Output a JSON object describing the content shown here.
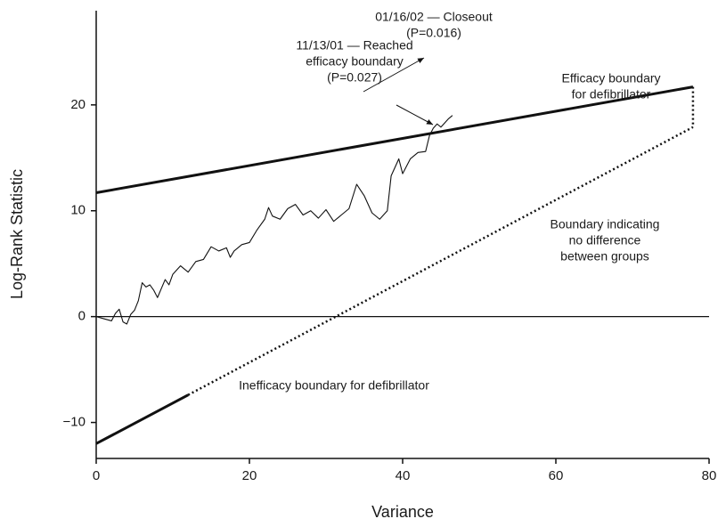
{
  "chart_data": {
    "type": "line",
    "x_label": "Variance",
    "y_label": "Log-Rank Statistic",
    "xlim": [
      0,
      80
    ],
    "ylim": [
      -13.4,
      28.9
    ],
    "xticks": [
      0,
      20,
      40,
      60,
      80
    ],
    "yticks": [
      {
        "value": -10,
        "label": "−10"
      },
      0,
      10,
      20
    ],
    "color": "#111111",
    "series": [
      {
        "x": [
          0,
          1,
          2,
          2.5,
          3,
          3.5,
          4,
          4.5,
          5,
          5.5,
          6,
          6.5,
          7,
          7.5,
          8,
          9,
          9.5,
          10,
          11,
          12,
          13,
          14,
          15,
          16,
          17,
          17.5,
          18,
          19,
          20,
          21,
          22,
          22.5,
          23,
          24,
          25,
          26,
          27,
          28,
          29,
          30,
          31,
          32,
          33,
          34,
          35,
          36,
          37,
          38,
          38.5,
          39,
          39.5,
          40,
          41,
          42,
          43,
          43.5,
          44,
          44.5,
          45,
          46,
          46.5
        ],
        "values": [
          0,
          -0.2,
          -0.4,
          0.3,
          0.7,
          -0.5,
          -0.7,
          0.2,
          0.6,
          1.5,
          3.2,
          2.8,
          3.0,
          2.5,
          1.8,
          3.5,
          3.0,
          4.0,
          4.8,
          4.2,
          5.2,
          5.4,
          6.6,
          6.2,
          6.5,
          5.6,
          6.2,
          6.8,
          7.0,
          8.2,
          9.2,
          10.3,
          9.5,
          9.2,
          10.2,
          10.6,
          9.6,
          10.0,
          9.3,
          10.1,
          9.0,
          9.6,
          10.2,
          12.5,
          11.4,
          9.8,
          9.2,
          10.0,
          13.3,
          14.1,
          14.9,
          13.5,
          14.9,
          15.5,
          15.6,
          17.1,
          17.8,
          18.2,
          17.9,
          18.7,
          19.0
        ],
        "style": "thin"
      },
      {
        "x": [
          0,
          77.9
        ],
        "values": [
          11.7,
          21.7
        ],
        "style": "thick"
      },
      {
        "x": [
          0,
          12
        ],
        "values": [
          -12,
          -7.4
        ],
        "style": "thick"
      },
      {
        "x": [
          12,
          77.9
        ],
        "values": [
          -7.4,
          17.9
        ],
        "style": "dotted"
      },
      {
        "x": [
          77.9,
          77.9
        ],
        "values": [
          21.7,
          17.9
        ],
        "style": "dotted"
      },
      {
        "x": [
          0,
          80
        ],
        "values": [
          0,
          0
        ],
        "style": "axis"
      }
    ],
    "annotations": [
      {
        "lines": [
          "01/16/02 — Closeout",
          "(P=0.016)"
        ]
      },
      {
        "lines": [
          "11/13/01 — Reached",
          "efficacy boundary",
          "(P=0.027)"
        ]
      },
      {
        "lines": [
          "Efficacy boundary",
          "for defibrillator"
        ]
      },
      {
        "lines": [
          "Boundary indicating",
          "no difference",
          "between groups"
        ]
      },
      {
        "lines": [
          "Inefficacy boundary for defibrillator"
        ]
      }
    ]
  }
}
